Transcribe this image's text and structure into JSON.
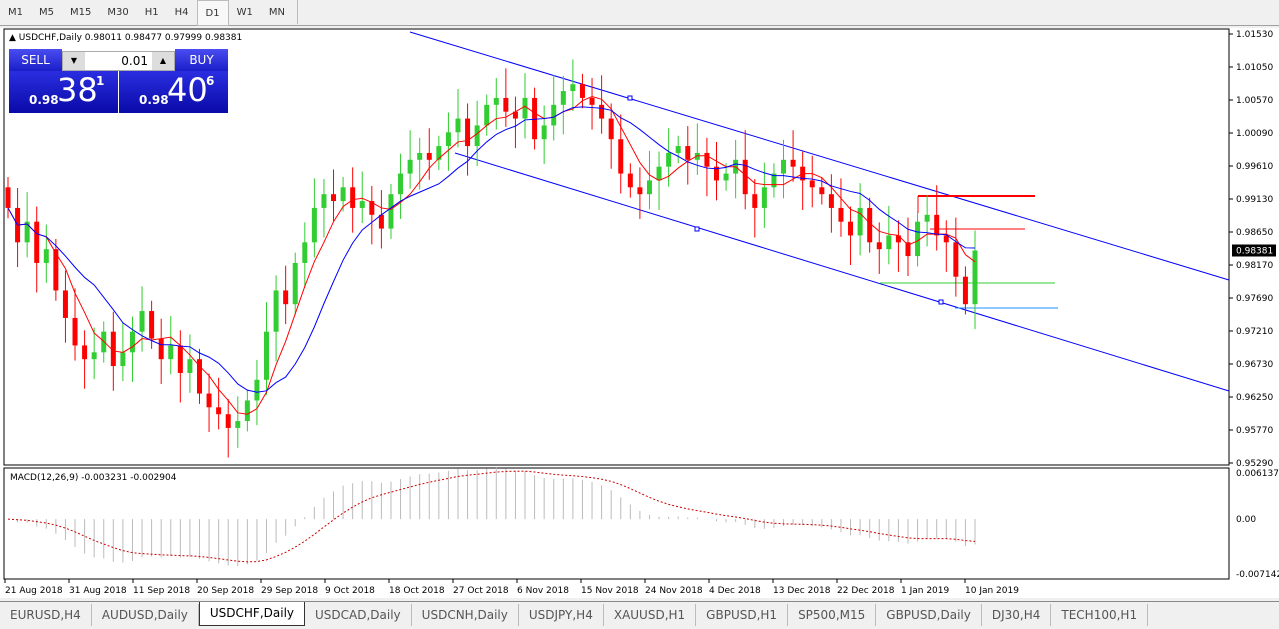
{
  "timeframes": [
    "M1",
    "M5",
    "M15",
    "M30",
    "H1",
    "H4",
    "D1",
    "W1",
    "MN"
  ],
  "active_timeframe": "D1",
  "symbol_info": {
    "symbol": "USDCHF,Daily",
    "ohlc": "0.98011 0.98477 0.97999 0.98381"
  },
  "trade_panel": {
    "sell_label": "SELL",
    "buy_label": "BUY",
    "lot": "0.01",
    "sell_small": "0.98",
    "sell_big": "38",
    "sell_sup": "1",
    "buy_small": "0.98",
    "buy_big": "40",
    "buy_sup": "6"
  },
  "price_axis": [
    "1.01530",
    "1.01050",
    "1.00570",
    "1.00090",
    "0.99610",
    "0.99130",
    "0.98650",
    "0.98170",
    "0.97690",
    "0.97210",
    "0.96730",
    "0.96250",
    "0.95770",
    "0.95290"
  ],
  "current_price": "0.98381",
  "macd": {
    "label": "MACD(12,26,9) -0.003231 -0.002904",
    "axis": [
      "0.006137",
      "0.00",
      "-0.007142"
    ]
  },
  "date_axis": [
    "21 Aug 2018",
    "31 Aug 2018",
    "11 Sep 2018",
    "20 Sep 2018",
    "29 Sep 2018",
    "9 Oct 2018",
    "18 Oct 2018",
    "27 Oct 2018",
    "6 Nov 2018",
    "15 Nov 2018",
    "24 Nov 2018",
    "4 Dec 2018",
    "13 Dec 2018",
    "22 Dec 2018",
    "1 Jan 2019",
    "10 Jan 2019"
  ],
  "chart_tabs": [
    "EURUSD,H4",
    "AUDUSD,Daily",
    "USDCHF,Daily",
    "USDCAD,Daily",
    "USDCNH,Daily",
    "USDJPY,H4",
    "XAUUSD,H1",
    "GBPUSD,H1",
    "SP500,M15",
    "GBPUSD,Daily",
    "DJ30,H4",
    "TECH100,H1"
  ],
  "active_tab": "USDCHF,Daily",
  "colors": {
    "bull": "#32cd32",
    "bear": "#ff0000",
    "ma_fast": "#ff0000",
    "ma_slow": "#0000ff",
    "channel": "#0000ff",
    "panel": "#1a1ec8"
  },
  "chart_data": {
    "type": "candlestick",
    "ylim": [
      0.9529,
      1.0153
    ],
    "closes": [
      0.99,
      0.985,
      0.988,
      0.982,
      0.984,
      0.978,
      0.974,
      0.97,
      0.968,
      0.969,
      0.972,
      0.967,
      0.969,
      0.972,
      0.975,
      0.971,
      0.968,
      0.97,
      0.966,
      0.968,
      0.963,
      0.961,
      0.96,
      0.958,
      0.959,
      0.962,
      0.965,
      0.972,
      0.978,
      0.976,
      0.982,
      0.985,
      0.99,
      0.992,
      0.991,
      0.993,
      0.99,
      0.991,
      0.989,
      0.987,
      0.992,
      0.995,
      0.997,
      0.998,
      0.997,
      0.999,
      1.001,
      1.003,
      0.999,
      1.002,
      1.005,
      1.006,
      1.004,
      1.003,
      1.006,
      1.0,
      1.002,
      1.005,
      1.007,
      1.008,
      1.006,
      1.005,
      1.003,
      1.0,
      0.995,
      0.993,
      0.992,
      0.994,
      0.996,
      0.998,
      0.999,
      0.997,
      0.998,
      0.996,
      0.994,
      0.995,
      0.997,
      0.992,
      0.99,
      0.993,
      0.995,
      0.997,
      0.996,
      0.994,
      0.993,
      0.992,
      0.99,
      0.988,
      0.986,
      0.99,
      0.985,
      0.984,
      0.986,
      0.985,
      0.983,
      0.988,
      0.989,
      0.986,
      0.985,
      0.98,
      0.976,
      0.98381
    ]
  }
}
